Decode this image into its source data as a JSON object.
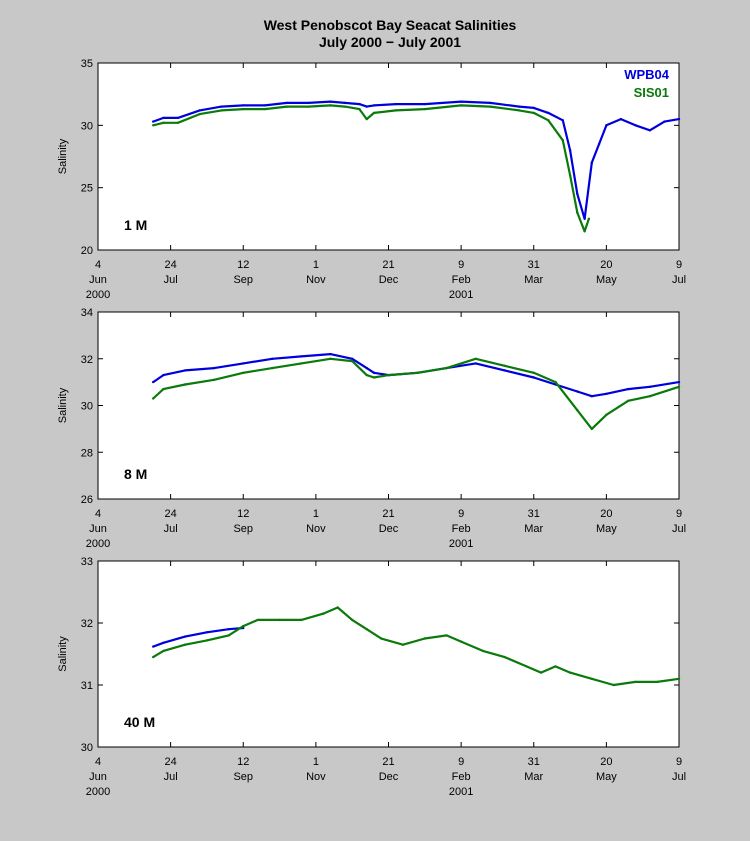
{
  "title": "West Penobscot Bay   Seacat Salinities",
  "subtitle": "July 2000 − July 2001",
  "colors": {
    "WPB04": "#0000dd",
    "SIS01": "#0a7a0a",
    "background": "#c8c8c8",
    "plot_bg": "#ffffff"
  },
  "chart_data": [
    {
      "type": "line",
      "panel_label": "1 M",
      "ylabel": "Salinity",
      "ylim": [
        20,
        35
      ],
      "yticks": [
        20,
        25,
        30,
        35
      ],
      "xlim": [
        0,
        400
      ],
      "xtick_values": [
        0,
        50,
        100,
        150,
        200,
        250,
        300,
        350,
        400
      ],
      "xtick_labels": [
        "4",
        "24",
        "12",
        "1",
        "21",
        "9",
        "31",
        "20",
        "9"
      ],
      "xtick_month_labels": [
        "Jun",
        "Jul",
        "Sep",
        "Nov",
        "Dec",
        "Feb",
        "Mar",
        "May",
        "Jul"
      ],
      "year_labels": [
        {
          "x": 0,
          "text": "2000"
        },
        {
          "x": 250,
          "text": "2001"
        }
      ],
      "legend": [
        "WPB04",
        "SIS01"
      ],
      "series": [
        {
          "name": "WPB04",
          "x": [
            38,
            45,
            55,
            70,
            85,
            100,
            115,
            130,
            145,
            160,
            170,
            180,
            185,
            190,
            205,
            225,
            250,
            270,
            290,
            300,
            310,
            320,
            325,
            330,
            335,
            340,
            345,
            350,
            360,
            370,
            380,
            390,
            400
          ],
          "y": [
            30.3,
            30.6,
            30.6,
            31.2,
            31.5,
            31.6,
            31.6,
            31.8,
            31.8,
            31.9,
            31.8,
            31.7,
            31.5,
            31.6,
            31.7,
            31.7,
            31.9,
            31.8,
            31.5,
            31.4,
            31.0,
            30.4,
            28.0,
            24.5,
            22.5,
            27.0,
            28.5,
            30.0,
            30.5,
            30.0,
            29.6,
            30.3,
            30.5
          ]
        },
        {
          "name": "SIS01",
          "x": [
            38,
            45,
            55,
            70,
            85,
            100,
            115,
            130,
            145,
            160,
            170,
            180,
            185,
            190,
            205,
            225,
            250,
            270,
            290,
            300,
            310,
            320,
            325,
            330,
            335,
            338
          ],
          "y": [
            30.0,
            30.2,
            30.2,
            30.9,
            31.2,
            31.3,
            31.3,
            31.5,
            31.5,
            31.6,
            31.5,
            31.3,
            30.5,
            31.0,
            31.2,
            31.3,
            31.6,
            31.5,
            31.2,
            31.0,
            30.4,
            28.8,
            26.0,
            23.0,
            21.5,
            22.5
          ]
        }
      ]
    },
    {
      "type": "line",
      "panel_label": "8 M",
      "ylabel": "Salinity",
      "ylim": [
        26,
        34
      ],
      "yticks": [
        26,
        28,
        30,
        32,
        34
      ],
      "xlim": [
        0,
        400
      ],
      "xtick_values": [
        0,
        50,
        100,
        150,
        200,
        250,
        300,
        350,
        400
      ],
      "xtick_labels": [
        "4",
        "24",
        "12",
        "1",
        "21",
        "9",
        "31",
        "20",
        "9"
      ],
      "xtick_month_labels": [
        "Jun",
        "Jul",
        "Sep",
        "Nov",
        "Dec",
        "Feb",
        "Mar",
        "May",
        "Jul"
      ],
      "year_labels": [
        {
          "x": 0,
          "text": "2000"
        },
        {
          "x": 250,
          "text": "2001"
        }
      ],
      "series": [
        {
          "name": "WPB04",
          "x": [
            38,
            45,
            60,
            80,
            100,
            120,
            140,
            160,
            175,
            185,
            190,
            200,
            220,
            240,
            260,
            280,
            300,
            315,
            330,
            340,
            350,
            365,
            380,
            400
          ],
          "y": [
            31.0,
            31.3,
            31.5,
            31.6,
            31.8,
            32.0,
            32.1,
            32.2,
            32.0,
            31.6,
            31.4,
            31.3,
            31.4,
            31.6,
            31.8,
            31.5,
            31.2,
            30.9,
            30.6,
            30.4,
            30.5,
            30.7,
            30.8,
            31.0
          ]
        },
        {
          "name": "SIS01",
          "x": [
            38,
            45,
            60,
            80,
            100,
            120,
            140,
            160,
            175,
            185,
            190,
            200,
            220,
            240,
            260,
            280,
            300,
            315,
            330,
            340,
            350,
            365,
            380,
            400
          ],
          "y": [
            30.3,
            30.7,
            30.9,
            31.1,
            31.4,
            31.6,
            31.8,
            32.0,
            31.9,
            31.3,
            31.2,
            31.3,
            31.4,
            31.6,
            32.0,
            31.7,
            31.4,
            31.0,
            29.8,
            29.0,
            29.6,
            30.2,
            30.4,
            30.8
          ]
        }
      ]
    },
    {
      "type": "line",
      "panel_label": "40 M",
      "ylabel": "Salinity",
      "ylim": [
        30,
        33
      ],
      "yticks": [
        30,
        31,
        32,
        33
      ],
      "xlim": [
        0,
        400
      ],
      "xtick_values": [
        0,
        50,
        100,
        150,
        200,
        250,
        300,
        350,
        400
      ],
      "xtick_labels": [
        "4",
        "24",
        "12",
        "1",
        "21",
        "9",
        "31",
        "20",
        "9"
      ],
      "xtick_month_labels": [
        "Jun",
        "Jul",
        "Sep",
        "Nov",
        "Dec",
        "Feb",
        "Mar",
        "May",
        "Jul"
      ],
      "year_labels": [
        {
          "x": 0,
          "text": "2000"
        },
        {
          "x": 250,
          "text": "2001"
        }
      ],
      "series": [
        {
          "name": "WPB04",
          "x": [
            38,
            45,
            60,
            75,
            90,
            100
          ],
          "y": [
            31.62,
            31.68,
            31.78,
            31.85,
            31.9,
            31.92
          ]
        },
        {
          "name": "SIS01",
          "x": [
            38,
            45,
            60,
            75,
            90,
            100,
            110,
            125,
            140,
            155,
            165,
            175,
            185,
            195,
            210,
            225,
            240,
            250,
            265,
            280,
            295,
            305,
            315,
            325,
            340,
            355,
            370,
            385,
            400
          ],
          "y": [
            31.45,
            31.55,
            31.65,
            31.72,
            31.8,
            31.95,
            32.05,
            32.05,
            32.05,
            32.15,
            32.25,
            32.05,
            31.9,
            31.75,
            31.65,
            31.75,
            31.8,
            31.7,
            31.55,
            31.45,
            31.3,
            31.2,
            31.3,
            31.2,
            31.1,
            31.0,
            31.05,
            31.05,
            31.1
          ]
        }
      ]
    }
  ]
}
